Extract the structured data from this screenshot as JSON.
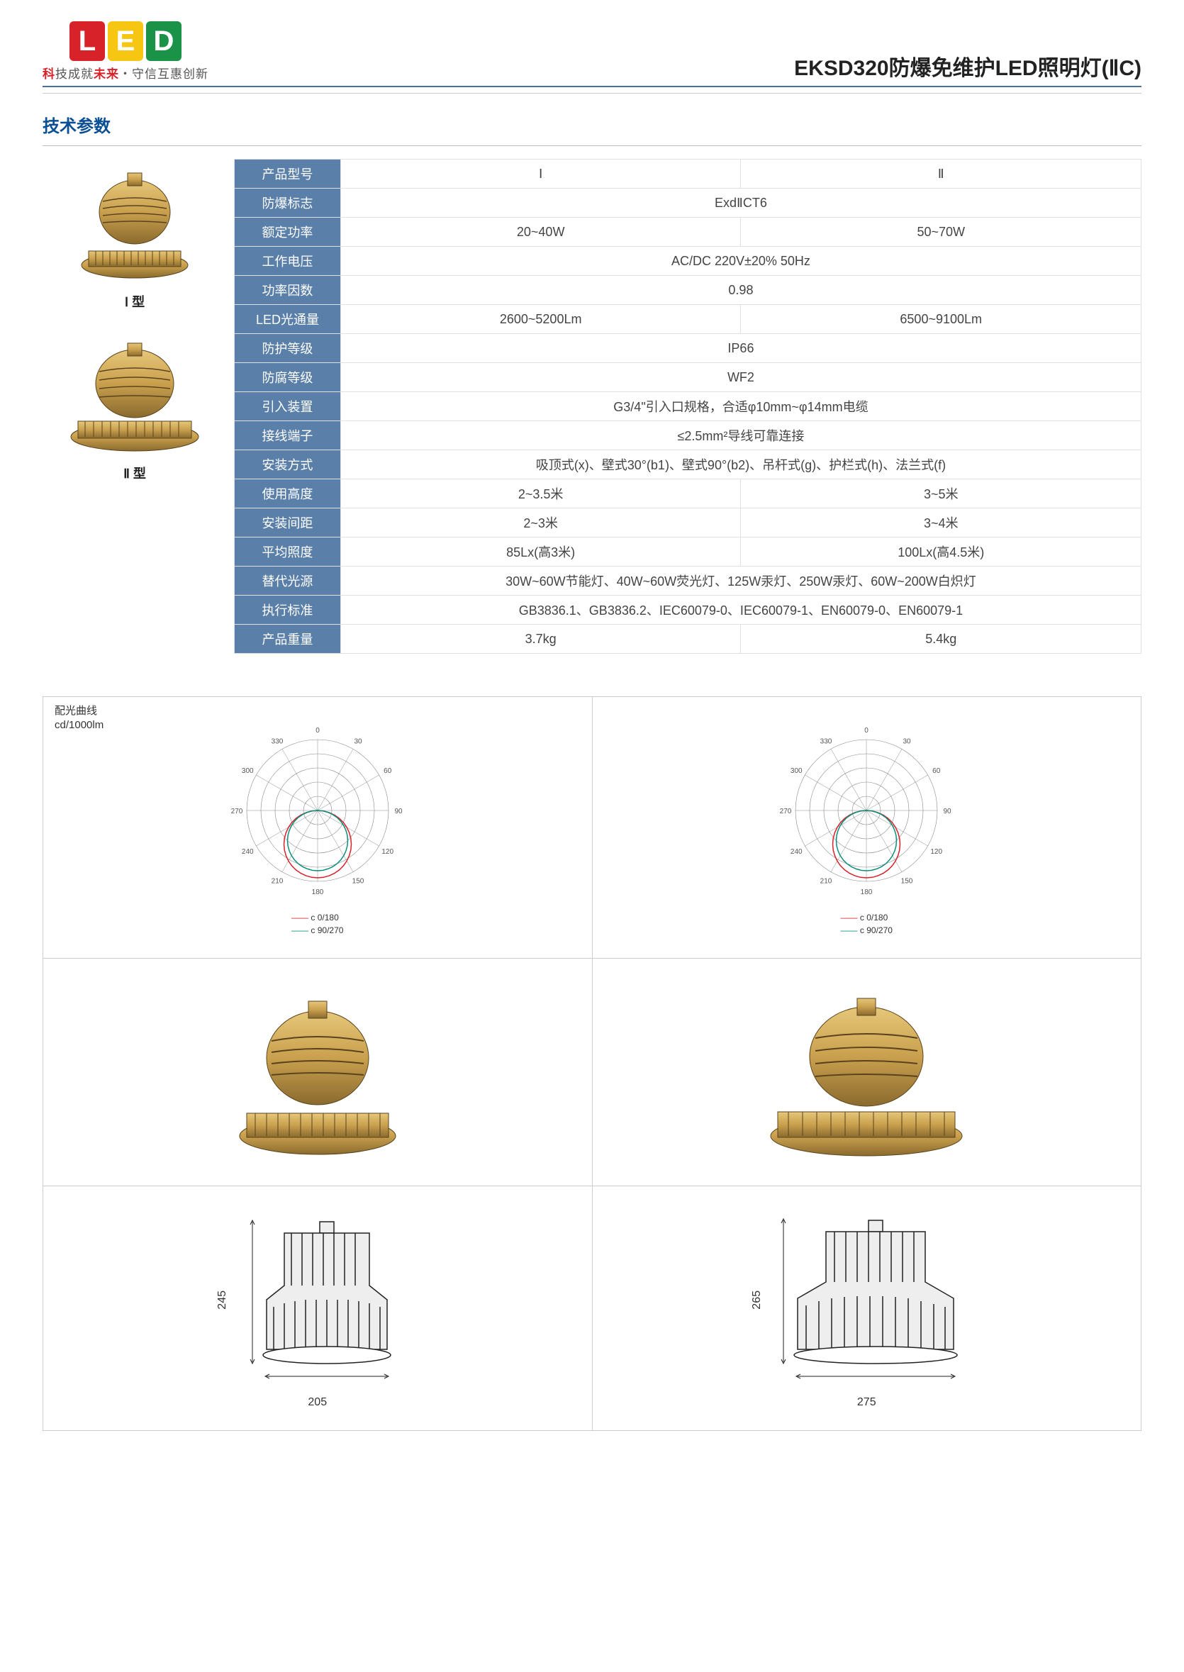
{
  "header": {
    "logo_letters": [
      "L",
      "E",
      "D"
    ],
    "tagline_prefix": "科",
    "tagline_mid": "技成就",
    "tagline_red": "未来",
    "tagline_suffix": "・守信互惠创新",
    "title": "EKSD320防爆免维护LED照明灯(ⅡC)"
  },
  "section_title": "技术参数",
  "side_labels": {
    "type1": "Ⅰ 型",
    "type2": "Ⅱ 型"
  },
  "spec_table": {
    "header_col": "产品型号",
    "col1": "Ⅰ",
    "col2": "Ⅱ",
    "rows": [
      {
        "label": "防爆标志",
        "v": "ExdⅡCT6",
        "span": true
      },
      {
        "label": "额定功率",
        "v1": "20~40W",
        "v2": "50~70W"
      },
      {
        "label": "工作电压",
        "v": "AC/DC 220V±20%    50Hz",
        "span": true
      },
      {
        "label": "功率因数",
        "v": "0.98",
        "span": true
      },
      {
        "label": "LED光通量",
        "v1": "2600~5200Lm",
        "v2": "6500~9100Lm"
      },
      {
        "label": "防护等级",
        "v": "IP66",
        "span": true
      },
      {
        "label": "防腐等级",
        "v": "WF2",
        "span": true
      },
      {
        "label": "引入装置",
        "v": "G3/4\"引入口规格，合适φ10mm~φ14mm电缆",
        "span": true
      },
      {
        "label": "接线端子",
        "v": "≤2.5mm²导线可靠连接",
        "span": true
      },
      {
        "label": "安装方式",
        "v": "吸顶式(x)、壁式30°(b1)、壁式90°(b2)、吊杆式(g)、护栏式(h)、法兰式(f)",
        "span": true
      },
      {
        "label": "使用高度",
        "v1": "2~3.5米",
        "v2": "3~5米"
      },
      {
        "label": "安装间距",
        "v1": "2~3米",
        "v2": "3~4米"
      },
      {
        "label": "平均照度",
        "v1": "85Lx(高3米)",
        "v2": "100Lx(高4.5米)"
      },
      {
        "label": "替代光源",
        "v": "30W~60W节能灯、40W~60W荧光灯、125W汞灯、250W汞灯、60W~200W白炽灯",
        "span": true
      },
      {
        "label": "执行标准",
        "v": "GB3836.1、GB3836.2、IEC60079-0、IEC60079-1、EN60079-0、EN60079-1",
        "span": true
      },
      {
        "label": "产品重量",
        "v1": "3.7kg",
        "v2": "5.4kg"
      }
    ]
  },
  "polar": {
    "caption_line1": "配光曲线",
    "caption_line2": "cd/1000lm",
    "angle_labels": [
      "0",
      "30",
      "60",
      "90",
      "120",
      "150",
      "180",
      "210",
      "240",
      "270",
      "300",
      "330"
    ],
    "legend1": "c 0/180",
    "legend2": "c 90/270",
    "legend1_color": "#d72229",
    "legend2_color": "#0a8f7a",
    "ring_color": "#888",
    "curve1_color": "#d72229",
    "curve2_color": "#0a8f7a"
  },
  "dimensions": {
    "type1": {
      "height": "245",
      "width": "205"
    },
    "type2": {
      "height": "265",
      "width": "275"
    }
  },
  "product_colors": {
    "body": "#c9a04e",
    "body_dark": "#8a6a2e",
    "body_light": "#e6c779",
    "shadow": "#5a431c"
  }
}
